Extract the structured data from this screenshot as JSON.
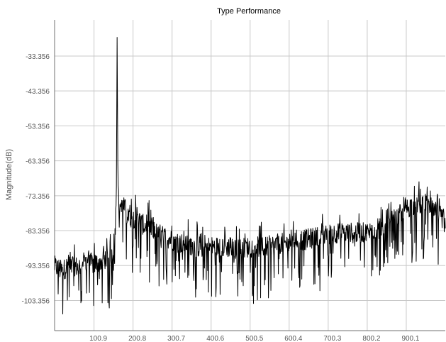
{
  "chart_data": {
    "type": "line",
    "title": "Type Performance",
    "xlabel": "",
    "ylabel": "Magnitude(dB)",
    "xlim": [
      0,
      1000
    ],
    "ylim": [
      -112.0,
      -23.0
    ],
    "x_ticks": [
      {
        "value": 100.9,
        "label": "100.9"
      },
      {
        "value": 200.8,
        "label": "200.8"
      },
      {
        "value": 300.7,
        "label": "300.7"
      },
      {
        "value": 400.6,
        "label": "400.6"
      },
      {
        "value": 500.5,
        "label": "500.5"
      },
      {
        "value": 600.4,
        "label": "600.4"
      },
      {
        "value": 700.3,
        "label": "700.3"
      },
      {
        "value": 800.2,
        "label": "800.2"
      },
      {
        "value": 900.1,
        "label": "900.1"
      }
    ],
    "y_ticks": [
      {
        "value": -33.356,
        "label": "-33.356"
      },
      {
        "value": -43.356,
        "label": "-43.356"
      },
      {
        "value": -53.356,
        "label": "-53.356"
      },
      {
        "value": -63.356,
        "label": "-63.356"
      },
      {
        "value": -73.356,
        "label": "-73.356"
      },
      {
        "value": -83.356,
        "label": "-83.356"
      },
      {
        "value": -93.356,
        "label": "-93.356"
      },
      {
        "value": -103.356,
        "label": "-103.356"
      }
    ],
    "grid": true,
    "legend": "none",
    "colors": {
      "line": "#000000",
      "grid": "#c8c8c8",
      "axis": "#707070",
      "text": "#555555",
      "title": "#000000",
      "background": "#ffffff"
    },
    "series": [
      {
        "x": [
          0,
          20,
          40,
          60,
          80,
          100,
          120,
          140,
          150,
          155,
          158,
          160,
          162,
          165,
          170,
          180,
          190,
          200,
          210,
          220,
          230,
          240,
          260,
          280,
          300,
          320,
          340,
          360,
          380,
          400,
          420,
          440,
          460,
          480,
          500,
          520,
          540,
          560,
          580,
          600,
          620,
          640,
          660,
          680,
          700,
          720,
          740,
          760,
          780,
          800,
          820,
          840,
          860,
          880,
          900,
          920,
          940,
          960,
          980,
          1000
        ],
        "y": [
          -93.5,
          -95.0,
          -92.5,
          -94.0,
          -92.0,
          -93.0,
          -92.0,
          -91.0,
          -89.0,
          -80.0,
          -75.0,
          -28.0,
          -68.0,
          -78.0,
          -76.0,
          -77.0,
          -79.0,
          -80.0,
          -79.0,
          -81.0,
          -82.0,
          -82.0,
          -84.0,
          -85.0,
          -86.0,
          -87.0,
          -87.0,
          -88.0,
          -88.0,
          -88.0,
          -88.0,
          -88.0,
          -88.5,
          -88.5,
          -88.0,
          -88.0,
          -88.0,
          -87.5,
          -87.0,
          -87.0,
          -86.0,
          -86.0,
          -85.5,
          -85.0,
          -84.5,
          -84.0,
          -84.0,
          -84.0,
          -84.0,
          -84.0,
          -83.0,
          -82.5,
          -81.0,
          -79.0,
          -77.0,
          -76.0,
          -75.5,
          -76.5,
          -78.5,
          -80.5
        ]
      }
    ],
    "notes": ""
  }
}
